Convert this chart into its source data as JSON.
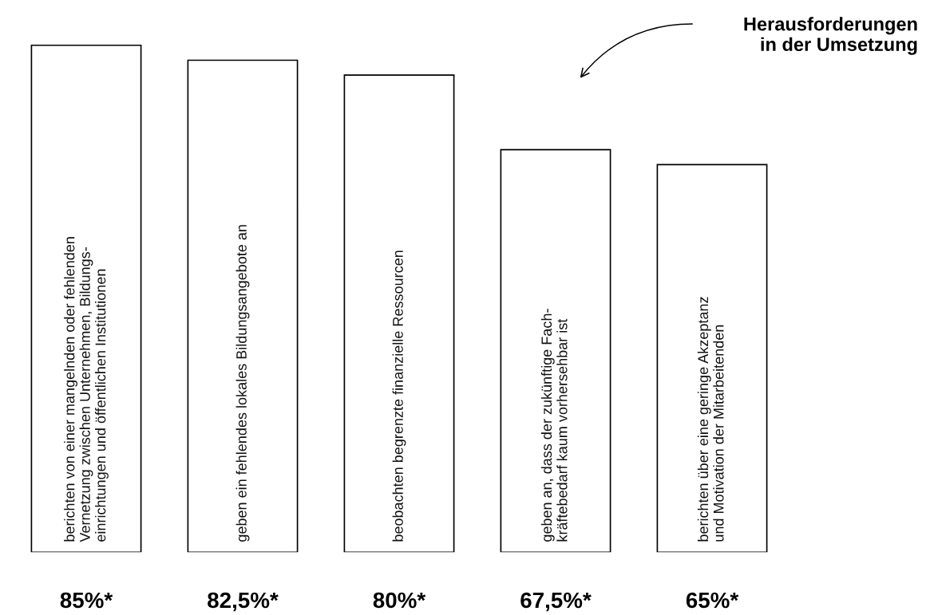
{
  "chart_data": {
    "type": "bar",
    "categories": [
      "berichten von einer mangelnden oder fehlenden\nVernetzung zwischen Unternehmen, Bildungs-\neinrichtungen und öffentlichen Institutionen",
      "geben ein fehlendes lokales Bildungsangebote an",
      "beobachten begrenzte finanzielle Ressourcen",
      "geben an, dass der zukünftige Fach-\nkräftebedarf kaum vorhersehbar ist",
      "berichten über eine geringe Akzeptanz\nund Motivation der Mitarbeitenden"
    ],
    "values": [
      85,
      82.5,
      80,
      67.5,
      65
    ],
    "value_labels": [
      "85%*",
      "82,5%*",
      "80%*",
      "67,5%*",
      "65%*"
    ],
    "color": "#ffffff",
    "annotations": [
      "Herausforderungen\nin der Umsetzung"
    ]
  }
}
